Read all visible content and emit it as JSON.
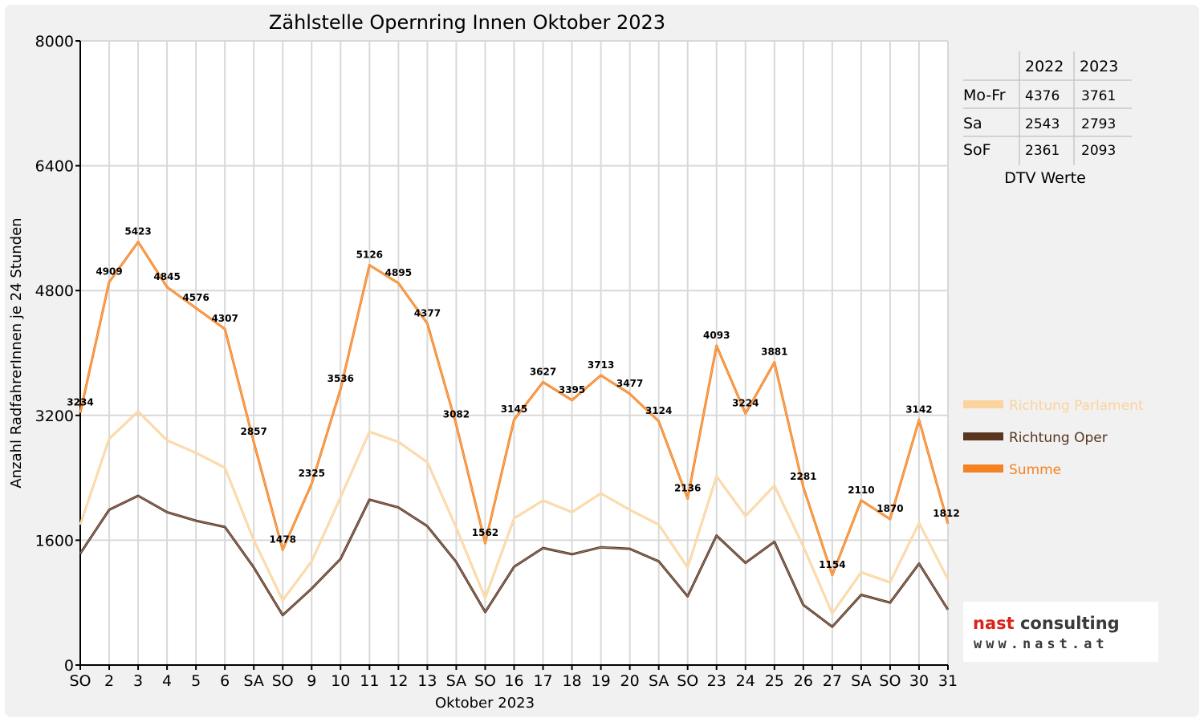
{
  "chart_data": {
    "type": "line",
    "title": "Zählstelle Opernring Innen Oktober 2023",
    "xlabel": "Oktober 2023",
    "ylabel": "Anzahl RadfahrerInnen je 24 Stunden",
    "ylim": [
      0,
      8000
    ],
    "yticks": [
      "0",
      "1600",
      "3200",
      "4800",
      "6400",
      "8000"
    ],
    "categories": [
      "SO",
      "2",
      "3",
      "4",
      "5",
      "6",
      "SA",
      "SO",
      "9",
      "10",
      "11",
      "12",
      "13",
      "SA",
      "SO",
      "16",
      "17",
      "18",
      "19",
      "20",
      "SA",
      "SO",
      "23",
      "24",
      "25",
      "26",
      "27",
      "SA",
      "SO",
      "30",
      "31"
    ],
    "highlight_categories": [
      0,
      7,
      14,
      21,
      25,
      28
    ],
    "highlight_color": "#e00000",
    "grid": true,
    "series": [
      {
        "name": "Richtung Parlament",
        "color": "#fbd39c",
        "values": [
          1800,
          2900,
          3250,
          2880,
          2720,
          2530,
          1600,
          830,
          1330,
          2150,
          2990,
          2860,
          2600,
          1760,
          860,
          1880,
          2110,
          1960,
          2200,
          1990,
          1800,
          1250,
          2420,
          1910,
          2300,
          1520,
          660,
          1190,
          1060,
          1820,
          1100
        ]
      },
      {
        "name": "Richtung Oper",
        "color": "#5a3520",
        "values": [
          1430,
          1990,
          2170,
          1960,
          1850,
          1770,
          1250,
          640,
          980,
          1360,
          2120,
          2020,
          1780,
          1320,
          680,
          1260,
          1500,
          1420,
          1510,
          1490,
          1330,
          880,
          1660,
          1310,
          1580,
          770,
          490,
          900,
          800,
          1300,
          710
        ]
      },
      {
        "name": "Summe",
        "color": "#f58220",
        "values": [
          3234,
          4909,
          5423,
          4845,
          4576,
          4307,
          2857,
          1478,
          2325,
          3536,
          5126,
          4895,
          4377,
          3082,
          1562,
          3145,
          3627,
          3395,
          3713,
          3477,
          3124,
          2136,
          4093,
          3224,
          3881,
          2281,
          1154,
          2110,
          1870,
          3142,
          1812
        ]
      }
    ],
    "data_labels": [
      "3234",
      "4909",
      "5423",
      "4845",
      "4576",
      "4307",
      "2857",
      "1478",
      "2325",
      "3536",
      "5126",
      "4895",
      "4377",
      "3082",
      "1562",
      "3145",
      "3627",
      "3395",
      "3713",
      "3477",
      "3124",
      "2136",
      "4093",
      "3224",
      "3881",
      "2281",
      "1154",
      "2110",
      "1870",
      "3142",
      "1812"
    ],
    "legend_position": "right"
  },
  "dtv_table": {
    "caption": "DTV Werte",
    "columns": [
      "2022",
      "2023"
    ],
    "rows": [
      {
        "label": "Mo-Fr",
        "v2022": "4376",
        "v2023": "3761"
      },
      {
        "label": "Sa",
        "v2022": "2543",
        "v2023": "2793"
      },
      {
        "label": "SoF",
        "v2022": "2361",
        "v2023": "2093"
      }
    ]
  },
  "logo": {
    "line1_a": "nast",
    "line1_b": " consulting",
    "line2": "www.nast.at",
    "color_a": "#d9241b",
    "color_b": "#3a3a3a"
  }
}
